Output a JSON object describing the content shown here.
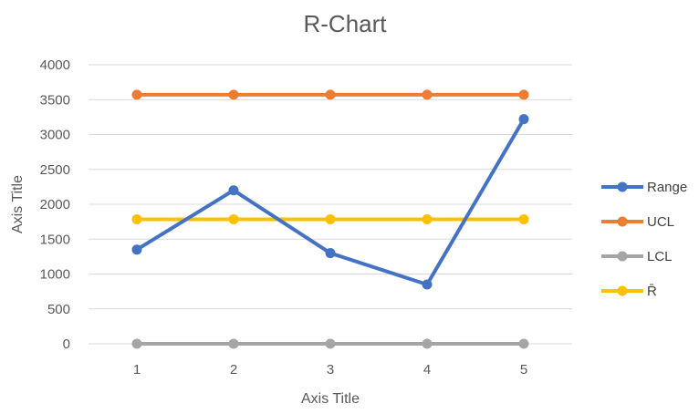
{
  "chart_data": {
    "type": "line",
    "title": "R-Chart",
    "xlabel": "Axis Title",
    "ylabel": "Axis Title",
    "categories": [
      "1",
      "2",
      "3",
      "4",
      "5"
    ],
    "ylim": [
      0,
      4000
    ],
    "y_ticks": [
      0,
      500,
      1000,
      1500,
      2000,
      2500,
      3000,
      3500,
      4000
    ],
    "grid": true,
    "legend_position": "right",
    "series": [
      {
        "name": "Range",
        "color": "#4472c4",
        "values": [
          1350,
          2200,
          1300,
          850,
          3220
        ]
      },
      {
        "name": "UCL",
        "color": "#ed7d31",
        "values": [
          3570,
          3570,
          3570,
          3570,
          3570
        ]
      },
      {
        "name": "LCL",
        "color": "#a5a5a5",
        "values": [
          0,
          0,
          0,
          0,
          0
        ]
      },
      {
        "name": "R̄",
        "color": "#ffc000",
        "values": [
          1785,
          1785,
          1785,
          1785,
          1785
        ]
      }
    ]
  }
}
